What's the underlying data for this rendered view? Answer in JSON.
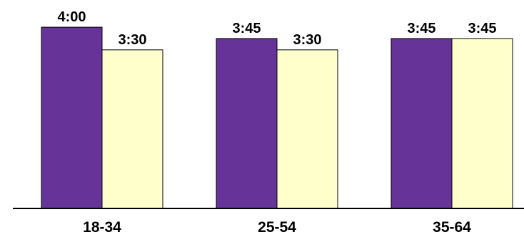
{
  "chart_data": {
    "type": "bar",
    "categories": [
      "18-34",
      "25-54",
      "35-64"
    ],
    "series": [
      {
        "color": "#663399",
        "values": [
          4.0,
          3.75,
          3.75
        ],
        "labels": [
          "4:00",
          "3:45",
          "3:45"
        ]
      },
      {
        "color": "#FFFFCC",
        "values": [
          3.5,
          3.5,
          3.75
        ],
        "labels": [
          "3:30",
          "3:30",
          "3:45"
        ]
      }
    ],
    "ylim": [
      0,
      4.6
    ],
    "grid": false,
    "legend": "none"
  }
}
